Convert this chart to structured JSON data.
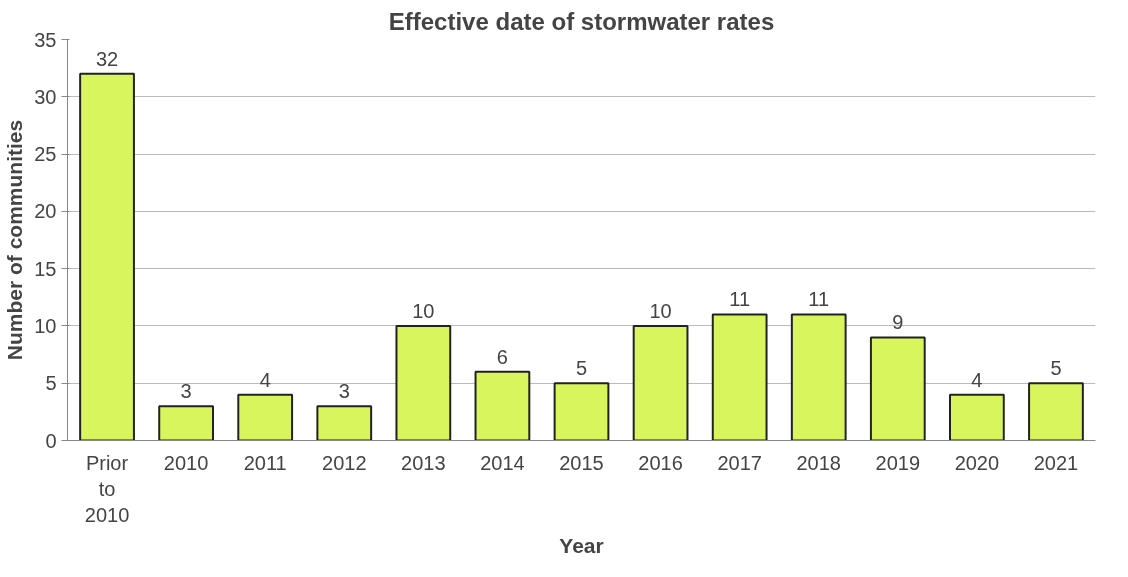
{
  "chart_data": {
    "type": "bar",
    "title": "Effective date of stormwater rates",
    "xlabel": "Year",
    "ylabel": "Number of communities",
    "categories": [
      "Prior to 2010",
      "2010",
      "2011",
      "2012",
      "2013",
      "2014",
      "2015",
      "2016",
      "2017",
      "2018",
      "2019",
      "2020",
      "2021"
    ],
    "values": [
      32,
      3,
      4,
      3,
      10,
      6,
      5,
      10,
      11,
      11,
      9,
      4,
      5
    ],
    "color": "#d8f55e",
    "ylim": [
      0,
      35
    ],
    "yticks": [
      0,
      5,
      10,
      15,
      20,
      25,
      30,
      35
    ],
    "grid": "y",
    "data_labels": true
  }
}
